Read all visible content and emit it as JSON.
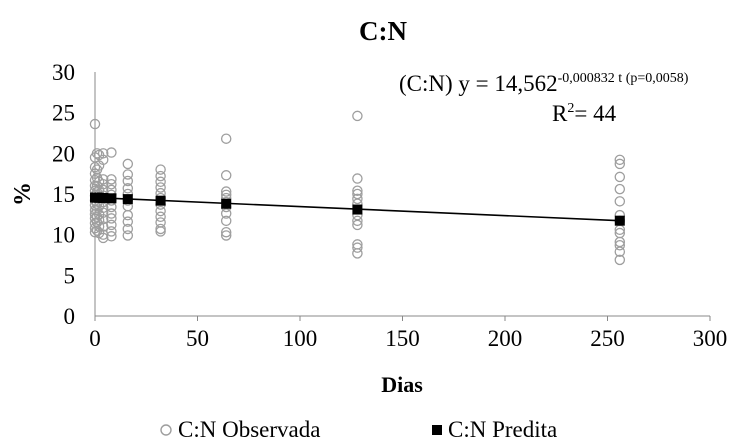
{
  "chart_data": {
    "type": "scatter",
    "title": "C:N",
    "xlabel": "Dias",
    "ylabel": "%",
    "xlim": [
      0,
      300
    ],
    "ylim": [
      0,
      30
    ],
    "x_ticks": [
      "0",
      "50",
      "100",
      "150",
      "200",
      "250",
      "300"
    ],
    "y_ticks": [
      "0",
      "5",
      "10",
      "15",
      "20",
      "25",
      "30"
    ],
    "grid": false,
    "legend_position": "bottom",
    "equation": {
      "prefix": "(C:N) y = 14,562",
      "exponent": "-0,000832 t (p=0,0058)",
      "r2_label": "R",
      "r2_sup": "2",
      "r2_value": "= 44"
    },
    "trend_line": {
      "x": [
        0,
        256
      ],
      "y": [
        14.56,
        11.72
      ]
    },
    "series": [
      {
        "name": "C:N Observada",
        "marker": "open-circle",
        "color": "#9e9e9e",
        "points": [
          [
            0,
            23.6
          ],
          [
            0,
            19.5
          ],
          [
            0,
            18.3
          ],
          [
            0,
            17.5
          ],
          [
            0,
            16.7
          ],
          [
            0,
            16.0
          ],
          [
            0,
            15.4
          ],
          [
            0,
            14.8
          ],
          [
            0,
            14.2
          ],
          [
            0,
            13.6
          ],
          [
            0,
            13.0
          ],
          [
            0,
            12.5
          ],
          [
            0,
            12.0
          ],
          [
            0,
            11.4
          ],
          [
            0,
            10.8
          ],
          [
            0,
            10.3
          ],
          [
            1,
            20.0
          ],
          [
            1,
            18.0
          ],
          [
            1,
            17.0
          ],
          [
            1,
            16.0
          ],
          [
            1,
            15.2
          ],
          [
            1,
            14.5
          ],
          [
            1,
            13.8
          ],
          [
            1,
            13.0
          ],
          [
            1,
            12.2
          ],
          [
            1,
            11.5
          ],
          [
            1,
            10.5
          ],
          [
            2,
            19.8
          ],
          [
            2,
            18.5
          ],
          [
            2,
            16.5
          ],
          [
            2,
            15.5
          ],
          [
            2,
            14.5
          ],
          [
            2,
            13.5
          ],
          [
            2,
            12.5
          ],
          [
            2,
            11.8
          ],
          [
            2,
            11.0
          ],
          [
            2,
            10.2
          ],
          [
            4,
            20.0
          ],
          [
            4,
            19.2
          ],
          [
            4,
            16.8
          ],
          [
            4,
            16.2
          ],
          [
            4,
            15.5
          ],
          [
            4,
            14.8
          ],
          [
            4,
            14.0
          ],
          [
            4,
            13.3
          ],
          [
            4,
            12.7
          ],
          [
            4,
            11.9
          ],
          [
            4,
            11.0
          ],
          [
            4,
            10.0
          ],
          [
            4,
            9.6
          ],
          [
            8,
            20.1
          ],
          [
            8,
            16.8
          ],
          [
            8,
            16.2
          ],
          [
            8,
            15.5
          ],
          [
            8,
            14.9
          ],
          [
            8,
            14.2
          ],
          [
            8,
            13.4
          ],
          [
            8,
            12.6
          ],
          [
            8,
            12.0
          ],
          [
            8,
            11.2
          ],
          [
            8,
            10.4
          ],
          [
            8,
            9.8
          ],
          [
            16,
            18.7
          ],
          [
            16,
            17.4
          ],
          [
            16,
            16.6
          ],
          [
            16,
            15.7
          ],
          [
            16,
            15.0
          ],
          [
            16,
            14.2
          ],
          [
            16,
            13.5
          ],
          [
            16,
            12.4
          ],
          [
            16,
            11.6
          ],
          [
            16,
            10.7
          ],
          [
            16,
            9.9
          ],
          [
            32,
            18.0
          ],
          [
            32,
            17.2
          ],
          [
            32,
            16.5
          ],
          [
            32,
            15.8
          ],
          [
            32,
            15.1
          ],
          [
            32,
            14.5
          ],
          [
            32,
            13.7
          ],
          [
            32,
            12.9
          ],
          [
            32,
            12.2
          ],
          [
            32,
            11.5
          ],
          [
            32,
            10.7
          ],
          [
            32,
            10.4
          ],
          [
            64,
            21.8
          ],
          [
            64,
            17.3
          ],
          [
            64,
            15.3
          ],
          [
            64,
            14.9
          ],
          [
            64,
            14.5
          ],
          [
            64,
            14.0
          ],
          [
            64,
            13.4
          ],
          [
            64,
            12.6
          ],
          [
            64,
            11.7
          ],
          [
            64,
            10.3
          ],
          [
            64,
            9.9
          ],
          [
            128,
            24.6
          ],
          [
            128,
            16.9
          ],
          [
            128,
            15.4
          ],
          [
            128,
            15.0
          ],
          [
            128,
            14.4
          ],
          [
            128,
            13.8
          ],
          [
            128,
            12.4
          ],
          [
            128,
            11.7
          ],
          [
            128,
            11.2
          ],
          [
            128,
            8.8
          ],
          [
            128,
            8.4
          ],
          [
            128,
            7.7
          ],
          [
            256,
            19.2
          ],
          [
            256,
            18.7
          ],
          [
            256,
            17.1
          ],
          [
            256,
            15.6
          ],
          [
            256,
            14.1
          ],
          [
            256,
            12.4
          ],
          [
            256,
            11.7
          ],
          [
            256,
            10.6
          ],
          [
            256,
            10.2
          ],
          [
            256,
            9.1
          ],
          [
            256,
            8.7
          ],
          [
            256,
            7.9
          ],
          [
            256,
            6.9
          ]
        ]
      },
      {
        "name": "C:N Predita",
        "marker": "filled-square",
        "color": "#000000",
        "points": [
          [
            0,
            14.56
          ],
          [
            1,
            14.55
          ],
          [
            2,
            14.54
          ],
          [
            4,
            14.51
          ],
          [
            8,
            14.47
          ],
          [
            16,
            14.37
          ],
          [
            32,
            14.18
          ],
          [
            64,
            13.8
          ],
          [
            128,
            13.09
          ],
          [
            256,
            11.72
          ]
        ]
      }
    ]
  }
}
